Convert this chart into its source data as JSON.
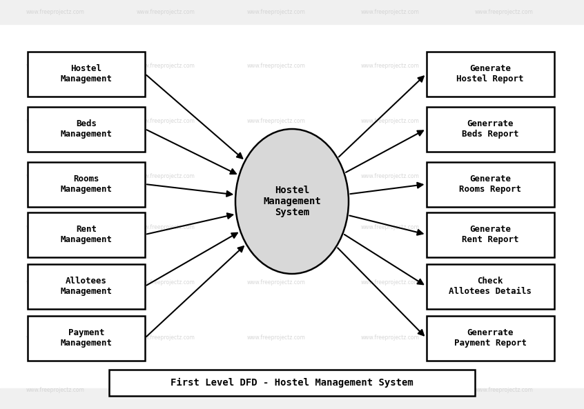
{
  "title": "First Level DFD - Hostel Management System",
  "center_label": "Hostel\nManagement\nSystem",
  "left_boxes": [
    {
      "label": "Hostel\nManagement"
    },
    {
      "label": "Beds\nManagement"
    },
    {
      "label": "Rooms\nManagement"
    },
    {
      "label": "Rent\nManagement"
    },
    {
      "label": "Allotees\nManagement"
    },
    {
      "label": "Payment\nManagement"
    }
  ],
  "right_boxes": [
    {
      "label": "Generate\nHostel Report"
    },
    {
      "label": "Generrate\nBeds Report"
    },
    {
      "label": "Generate\nRooms Report"
    },
    {
      "label": "Generate\nRent Report"
    },
    {
      "label": "Check\nAllotees Details"
    },
    {
      "label": "Generrate\nPayment Report"
    }
  ],
  "bg_color": "#ffffff",
  "box_face_color": "#ffffff",
  "box_edge_color": "#000000",
  "ellipse_face_color": "#d8d8d8",
  "ellipse_edge_color": "#000000",
  "arrow_color": "#000000",
  "text_color": "#000000",
  "watermark_color": "#d0d0d0",
  "watermark_text": "www.freeprojectz.com"
}
